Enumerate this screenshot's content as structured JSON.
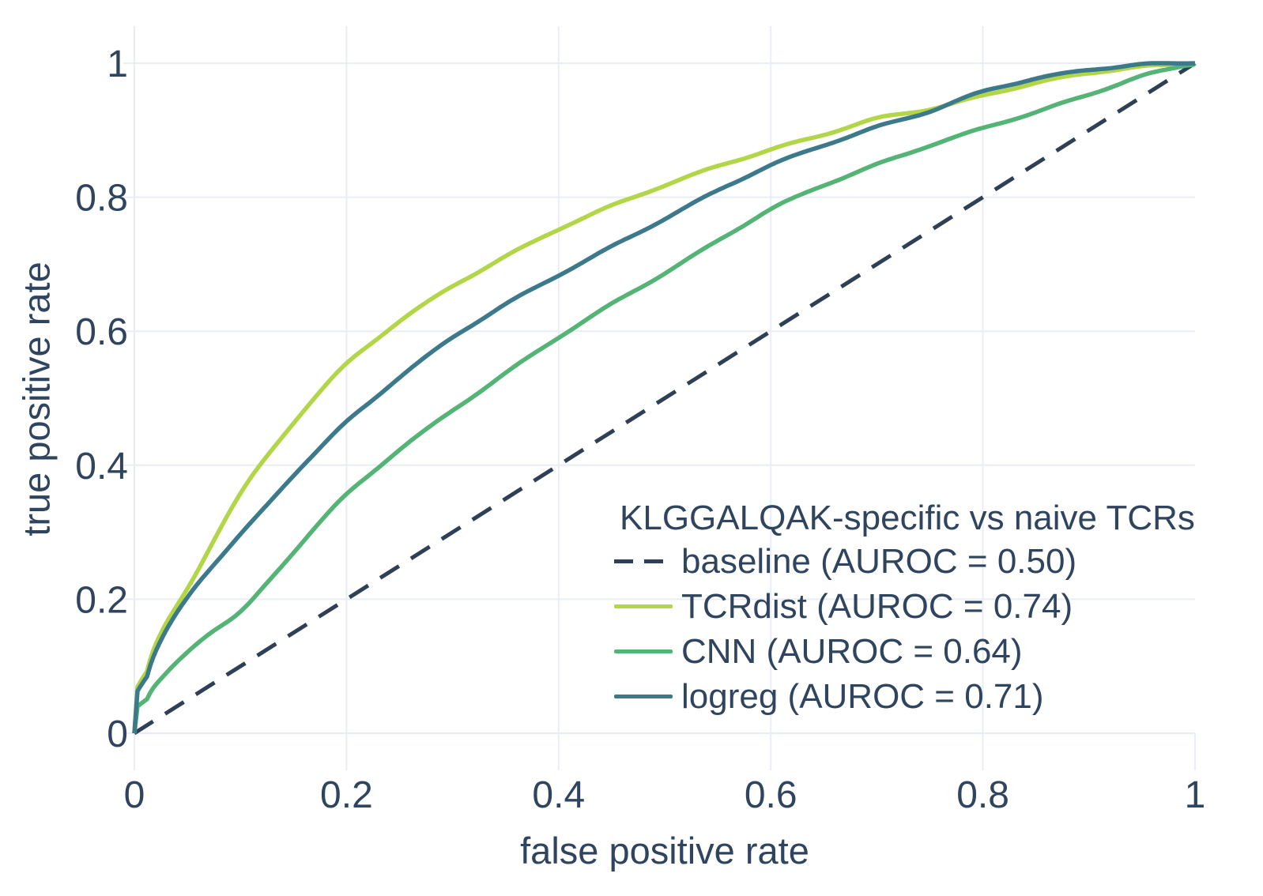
{
  "chart_data": {
    "type": "line",
    "title": "",
    "xlabel": "false positive rate",
    "ylabel": "true positive rate",
    "xlim": [
      0,
      1
    ],
    "ylim": [
      0,
      1
    ],
    "x_ticks": [
      "0",
      "0.2",
      "0.4",
      "0.6",
      "0.8",
      "1"
    ],
    "y_ticks": [
      "0",
      "0.2",
      "0.4",
      "0.6",
      "0.8",
      "1"
    ],
    "x_tick_values": [
      0,
      0.2,
      0.4,
      0.6,
      0.8,
      1
    ],
    "y_tick_values": [
      0,
      0.2,
      0.4,
      0.6,
      0.8,
      1
    ],
    "grid": true,
    "colors": {
      "grid": "#e9eef6",
      "axis_line": "#e6ebf4",
      "text": "#2f445e",
      "background": "#ffffff"
    },
    "legend": {
      "title": "KLGGALQAK-specific vs naive TCRs",
      "position": "inside-bottom-right"
    },
    "series": [
      {
        "name": "baseline",
        "label": "baseline (AUROC = 0.50)",
        "auroc": "0.50",
        "color": "#2e4056",
        "dash": true,
        "points": [
          [
            0,
            0
          ],
          [
            1,
            1
          ]
        ]
      },
      {
        "name": "TCRdist",
        "label": "TCRdist (AUROC = 0.74)",
        "auroc": "0.74",
        "color": "#b3d649",
        "dash": false,
        "points": [
          [
            0,
            0
          ],
          [
            0.005,
            0.065
          ],
          [
            0.01,
            0.095
          ],
          [
            0.02,
            0.135
          ],
          [
            0.03,
            0.165
          ],
          [
            0.04,
            0.19
          ],
          [
            0.05,
            0.215
          ],
          [
            0.065,
            0.26
          ],
          [
            0.08,
            0.305
          ],
          [
            0.1,
            0.36
          ],
          [
            0.12,
            0.405
          ],
          [
            0.15,
            0.465
          ],
          [
            0.175,
            0.51
          ],
          [
            0.2,
            0.552
          ],
          [
            0.25,
            0.615
          ],
          [
            0.3,
            0.668
          ],
          [
            0.35,
            0.712
          ],
          [
            0.4,
            0.752
          ],
          [
            0.45,
            0.786
          ],
          [
            0.5,
            0.818
          ],
          [
            0.55,
            0.848
          ],
          [
            0.6,
            0.872
          ],
          [
            0.65,
            0.893
          ],
          [
            0.7,
            0.918
          ],
          [
            0.75,
            0.932
          ],
          [
            0.8,
            0.952
          ],
          [
            0.85,
            0.97
          ],
          [
            0.9,
            0.984
          ],
          [
            0.95,
            0.995
          ],
          [
            1,
            1
          ]
        ]
      },
      {
        "name": "CNN",
        "label": "CNN (AUROC = 0.64)",
        "auroc": "0.64",
        "color": "#54b476",
        "dash": false,
        "points": [
          [
            0,
            0
          ],
          [
            0.005,
            0.04
          ],
          [
            0.01,
            0.055
          ],
          [
            0.02,
            0.07
          ],
          [
            0.03,
            0.09
          ],
          [
            0.04,
            0.107
          ],
          [
            0.05,
            0.122
          ],
          [
            0.065,
            0.145
          ],
          [
            0.08,
            0.16
          ],
          [
            0.1,
            0.178
          ],
          [
            0.12,
            0.215
          ],
          [
            0.15,
            0.27
          ],
          [
            0.175,
            0.315
          ],
          [
            0.2,
            0.357
          ],
          [
            0.25,
            0.425
          ],
          [
            0.3,
            0.483
          ],
          [
            0.35,
            0.537
          ],
          [
            0.4,
            0.59
          ],
          [
            0.45,
            0.64
          ],
          [
            0.5,
            0.687
          ],
          [
            0.55,
            0.735
          ],
          [
            0.6,
            0.782
          ],
          [
            0.65,
            0.818
          ],
          [
            0.7,
            0.85
          ],
          [
            0.75,
            0.879
          ],
          [
            0.8,
            0.903
          ],
          [
            0.85,
            0.926
          ],
          [
            0.9,
            0.953
          ],
          [
            0.95,
            0.982
          ],
          [
            1,
            1
          ]
        ]
      },
      {
        "name": "logreg",
        "label": "logreg (AUROC = 0.71)",
        "auroc": "0.71",
        "color": "#3c7a8b",
        "dash": false,
        "points": [
          [
            0,
            0
          ],
          [
            0.005,
            0.06
          ],
          [
            0.01,
            0.085
          ],
          [
            0.02,
            0.125
          ],
          [
            0.03,
            0.155
          ],
          [
            0.04,
            0.18
          ],
          [
            0.05,
            0.205
          ],
          [
            0.065,
            0.235
          ],
          [
            0.08,
            0.26
          ],
          [
            0.1,
            0.295
          ],
          [
            0.12,
            0.33
          ],
          [
            0.15,
            0.385
          ],
          [
            0.175,
            0.425
          ],
          [
            0.2,
            0.466
          ],
          [
            0.25,
            0.533
          ],
          [
            0.3,
            0.592
          ],
          [
            0.35,
            0.64
          ],
          [
            0.4,
            0.684
          ],
          [
            0.45,
            0.727
          ],
          [
            0.5,
            0.768
          ],
          [
            0.55,
            0.809
          ],
          [
            0.6,
            0.847
          ],
          [
            0.65,
            0.878
          ],
          [
            0.7,
            0.906
          ],
          [
            0.75,
            0.928
          ],
          [
            0.8,
            0.958
          ],
          [
            0.85,
            0.978
          ],
          [
            0.9,
            0.992
          ],
          [
            0.95,
            0.999
          ],
          [
            1,
            1
          ]
        ]
      }
    ]
  }
}
